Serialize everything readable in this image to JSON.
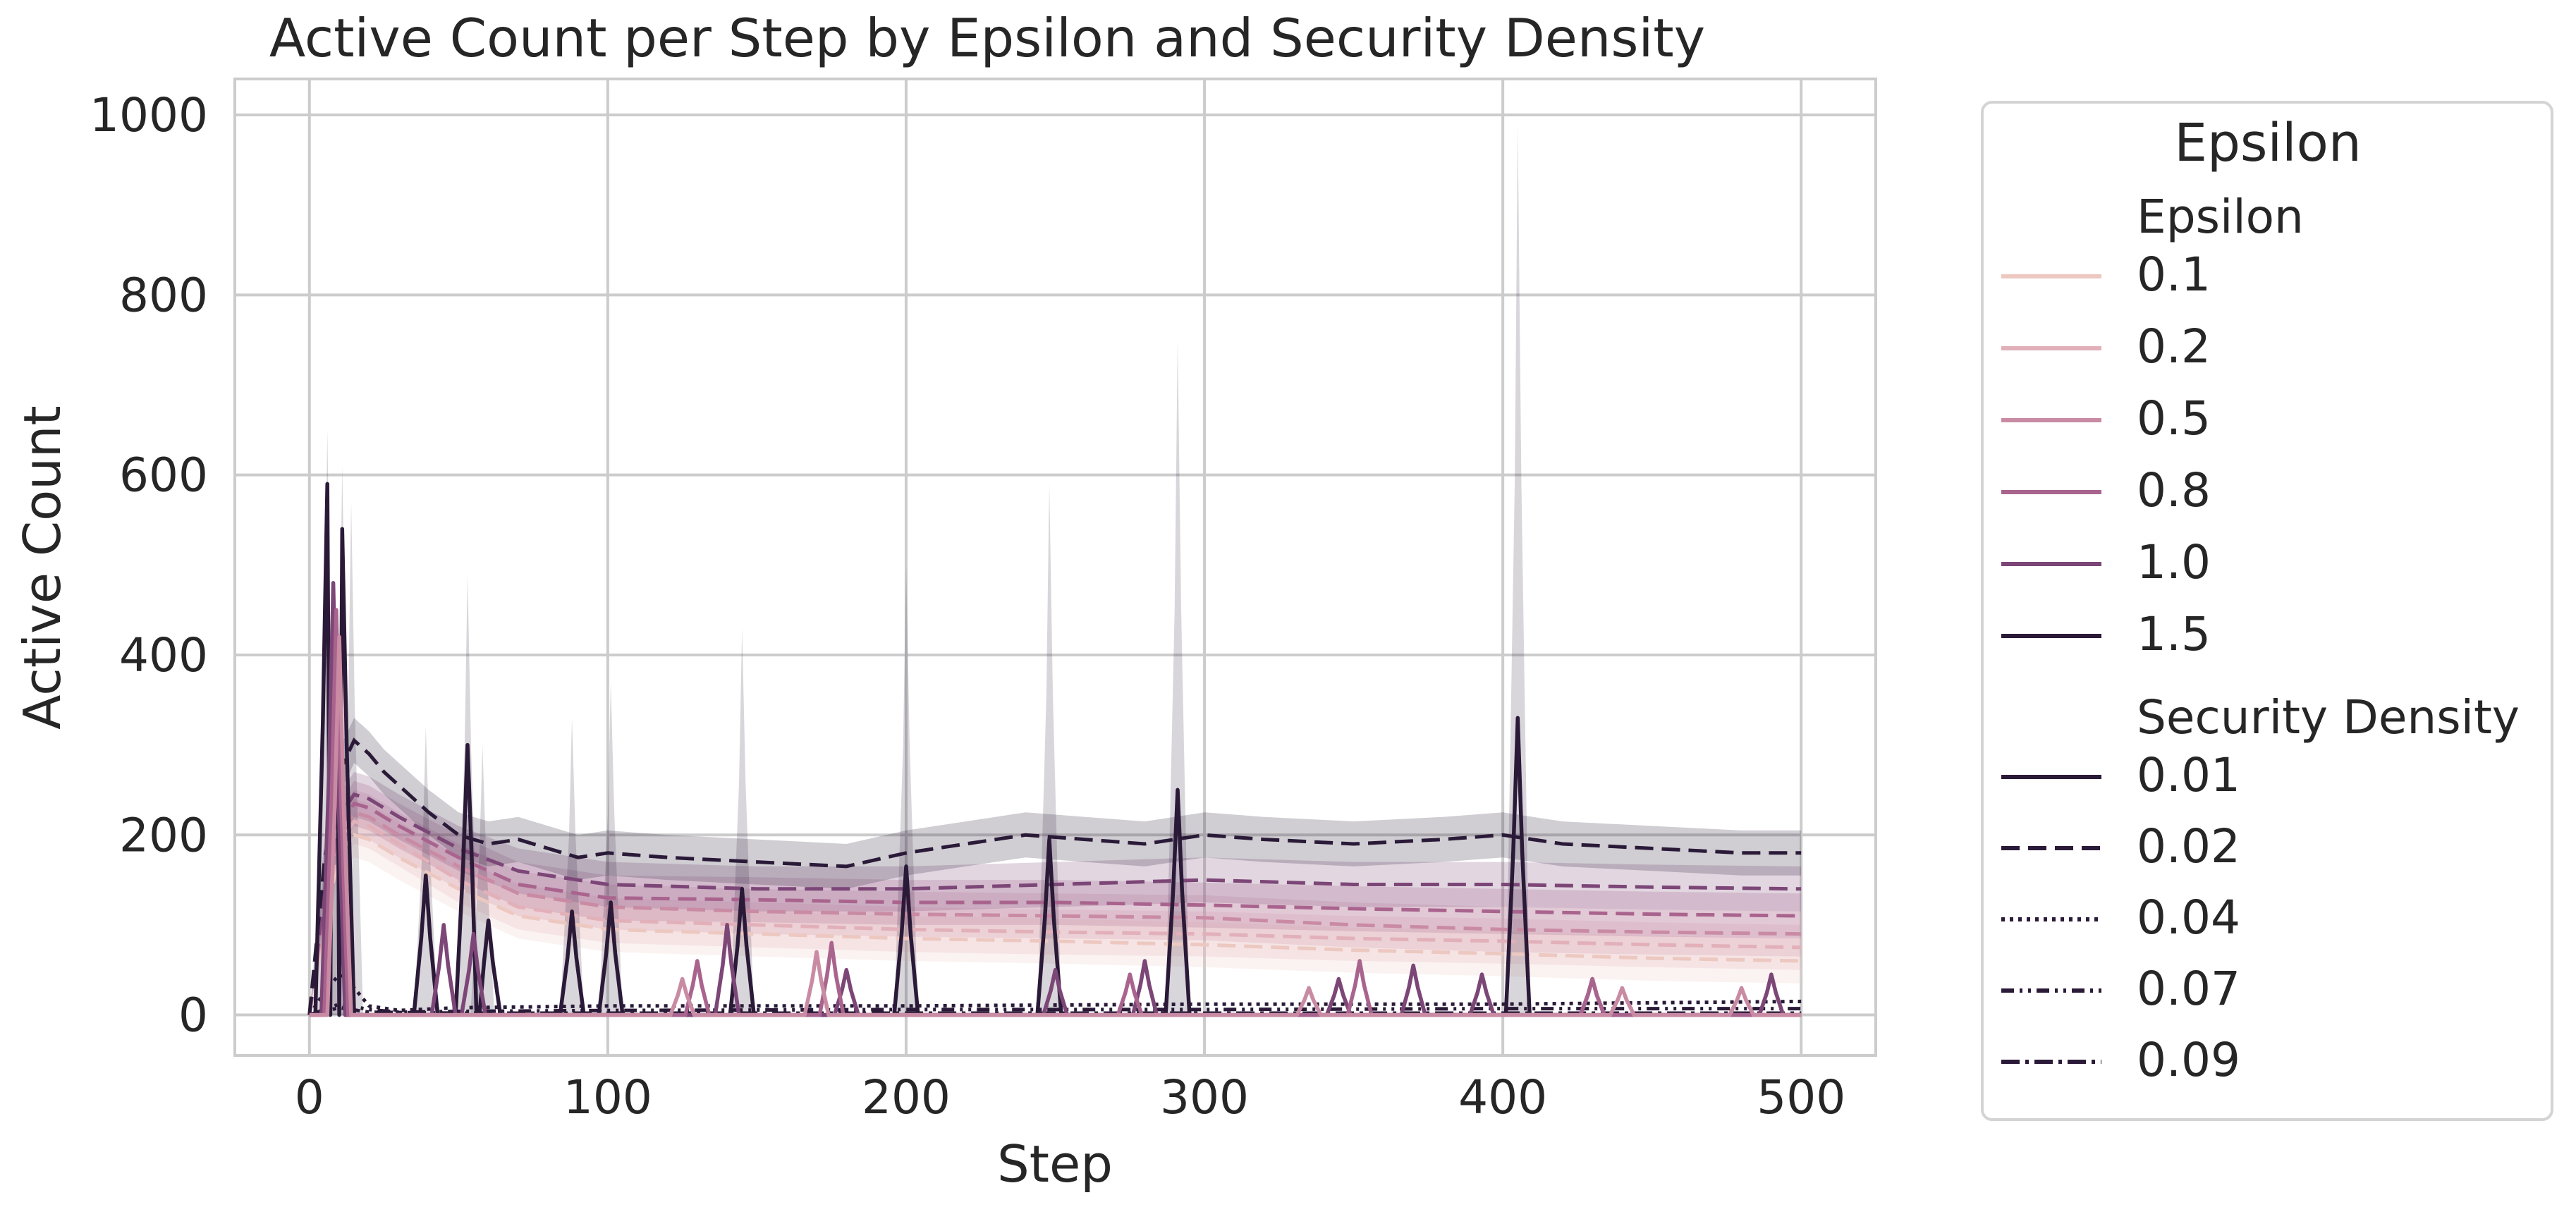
{
  "chart_data": {
    "type": "line",
    "title": "Active Count per Step by Epsilon and Security Density",
    "xlabel": "Step",
    "ylabel": "Active Count",
    "xlim": [
      -25,
      525
    ],
    "ylim": [
      -45,
      1040
    ],
    "xticks": [
      0,
      100,
      200,
      300,
      400,
      500
    ],
    "yticks": [
      0,
      200,
      400,
      600,
      800,
      1000
    ],
    "grid": true,
    "legend": {
      "title": "Epsilon",
      "placement": "outside-right",
      "hue_title": "Epsilon",
      "hue_entries": [
        {
          "label": "0.1",
          "color": "#ecc8c0"
        },
        {
          "label": "0.2",
          "color": "#e2b0b9"
        },
        {
          "label": "0.5",
          "color": "#c98ba3"
        },
        {
          "label": "0.8",
          "color": "#a9648e"
        },
        {
          "label": "1.0",
          "color": "#7c4677"
        },
        {
          "label": "1.5",
          "color": "#2a1a38"
        }
      ],
      "style_title": "Security Density",
      "style_entries": [
        {
          "label": "0.01",
          "dash": "solid"
        },
        {
          "label": "0.02",
          "dash": "dashed"
        },
        {
          "label": "0.04",
          "dash": "dotted"
        },
        {
          "label": "0.07",
          "dash": "dashdotdot"
        },
        {
          "label": "0.09",
          "dash": "dashdot"
        }
      ]
    },
    "dashed_series": [
      {
        "epsilon": "0.1",
        "density": "0.02",
        "color": "#ecc8c0",
        "band": 25,
        "x": [
          0,
          5,
          10,
          15,
          20,
          30,
          50,
          70,
          100,
          150,
          200,
          250,
          300,
          350,
          400,
          450,
          500
        ],
        "y": [
          0,
          100,
          180,
          200,
          195,
          175,
          140,
          110,
          95,
          90,
          85,
          82,
          78,
          72,
          68,
          63,
          60
        ]
      },
      {
        "epsilon": "0.2",
        "density": "0.02",
        "color": "#e2b0b9",
        "band": 25,
        "x": [
          0,
          5,
          10,
          15,
          20,
          30,
          50,
          70,
          100,
          150,
          200,
          250,
          300,
          350,
          400,
          450,
          500
        ],
        "y": [
          0,
          110,
          190,
          215,
          210,
          190,
          150,
          120,
          105,
          100,
          95,
          92,
          90,
          85,
          82,
          78,
          75
        ]
      },
      {
        "epsilon": "0.5",
        "density": "0.02",
        "color": "#c98ba3",
        "band": 25,
        "x": [
          0,
          5,
          10,
          15,
          20,
          30,
          50,
          70,
          100,
          150,
          200,
          250,
          300,
          350,
          400,
          450,
          500
        ],
        "y": [
          0,
          120,
          200,
          225,
          220,
          200,
          165,
          135,
          120,
          115,
          112,
          110,
          108,
          100,
          95,
          92,
          90
        ]
      },
      {
        "epsilon": "0.8",
        "density": "0.02",
        "color": "#a9648e",
        "band": 25,
        "x": [
          0,
          5,
          10,
          15,
          20,
          30,
          50,
          70,
          100,
          150,
          200,
          250,
          300,
          350,
          400,
          450,
          500
        ],
        "y": [
          0,
          130,
          210,
          235,
          230,
          210,
          175,
          145,
          130,
          128,
          125,
          125,
          122,
          118,
          115,
          112,
          110
        ]
      },
      {
        "epsilon": "1.0",
        "density": "0.02",
        "color": "#7c4677",
        "band": 25,
        "x": [
          0,
          5,
          10,
          15,
          20,
          30,
          50,
          70,
          100,
          150,
          200,
          250,
          300,
          350,
          400,
          450,
          500
        ],
        "y": [
          0,
          140,
          220,
          245,
          240,
          220,
          185,
          160,
          145,
          140,
          140,
          145,
          150,
          145,
          145,
          142,
          140
        ]
      },
      {
        "epsilon": "1.5",
        "density": "0.02",
        "color": "#2a1a38",
        "band": 25,
        "x": [
          0,
          5,
          10,
          15,
          20,
          25,
          30,
          40,
          50,
          60,
          70,
          80,
          90,
          100,
          120,
          150,
          180,
          200,
          220,
          240,
          260,
          280,
          300,
          320,
          350,
          380,
          400,
          420,
          450,
          480,
          500
        ],
        "y": [
          0,
          170,
          270,
          305,
          290,
          270,
          255,
          225,
          200,
          190,
          195,
          185,
          175,
          180,
          175,
          170,
          165,
          180,
          190,
          200,
          195,
          190,
          200,
          195,
          190,
          195,
          200,
          190,
          185,
          180,
          180
        ]
      }
    ],
    "spike_series": [
      {
        "epsilon": "1.5",
        "density": "0.01",
        "color": "#2a1a38",
        "peaks": [
          [
            6,
            590
          ],
          [
            11,
            540
          ],
          [
            39,
            155
          ],
          [
            53,
            300
          ],
          [
            60,
            105
          ],
          [
            88,
            115
          ],
          [
            101,
            125
          ],
          [
            145,
            140
          ],
          [
            200,
            165
          ],
          [
            248,
            195
          ],
          [
            291,
            250
          ],
          [
            405,
            330
          ]
        ]
      },
      {
        "epsilon": "1.0",
        "density": "0.01",
        "color": "#7c4677",
        "peaks": [
          [
            8,
            480
          ],
          [
            45,
            100
          ],
          [
            55,
            90
          ],
          [
            140,
            100
          ],
          [
            180,
            50
          ],
          [
            250,
            50
          ],
          [
            280,
            60
          ],
          [
            345,
            40
          ],
          [
            370,
            55
          ],
          [
            393,
            45
          ],
          [
            430,
            40
          ],
          [
            490,
            45
          ]
        ]
      },
      {
        "epsilon": "0.8",
        "density": "0.01",
        "color": "#a9648e",
        "peaks": [
          [
            9,
            450
          ],
          [
            130,
            60
          ],
          [
            175,
            80
          ],
          [
            275,
            45
          ],
          [
            352,
            60
          ],
          [
            430,
            40
          ]
        ]
      },
      {
        "epsilon": "0.5",
        "density": "0.01",
        "color": "#c98ba3",
        "peaks": [
          [
            10,
            420
          ],
          [
            125,
            40
          ],
          [
            170,
            70
          ],
          [
            335,
            30
          ],
          [
            440,
            30
          ],
          [
            480,
            30
          ]
        ]
      }
    ],
    "spike_bands": [
      [
        6,
        650
      ],
      [
        11,
        610
      ],
      [
        14,
        570
      ],
      [
        39,
        320
      ],
      [
        53,
        490
      ],
      [
        58,
        300
      ],
      [
        88,
        330
      ],
      [
        101,
        370
      ],
      [
        145,
        430
      ],
      [
        200,
        500
      ],
      [
        248,
        590
      ],
      [
        291,
        750
      ],
      [
        405,
        990
      ]
    ],
    "low_series": [
      {
        "epsilon": "1.5",
        "density": "0.04",
        "color": "#2a1a38",
        "dash": "dotted",
        "x": [
          0,
          5,
          10,
          15,
          20,
          30,
          50,
          100,
          200,
          300,
          400,
          500
        ],
        "y": [
          0,
          25,
          45,
          30,
          10,
          5,
          8,
          10,
          10,
          12,
          12,
          15
        ]
      },
      {
        "epsilon": "1.5",
        "density": "0.07",
        "color": "#2a1a38",
        "dash": "dashdotdot",
        "x": [
          0,
          10,
          20,
          30,
          50,
          100,
          200,
          300,
          400,
          500
        ],
        "y": [
          0,
          12,
          6,
          3,
          4,
          5,
          6,
          6,
          7,
          7
        ]
      },
      {
        "epsilon": "1.5",
        "density": "0.09",
        "color": "#2a1a38",
        "dash": "dashdot",
        "x": [
          0,
          10,
          20,
          50,
          100,
          200,
          300,
          400,
          500
        ],
        "y": [
          0,
          8,
          3,
          2,
          2,
          2,
          2,
          2,
          2
        ]
      }
    ]
  }
}
